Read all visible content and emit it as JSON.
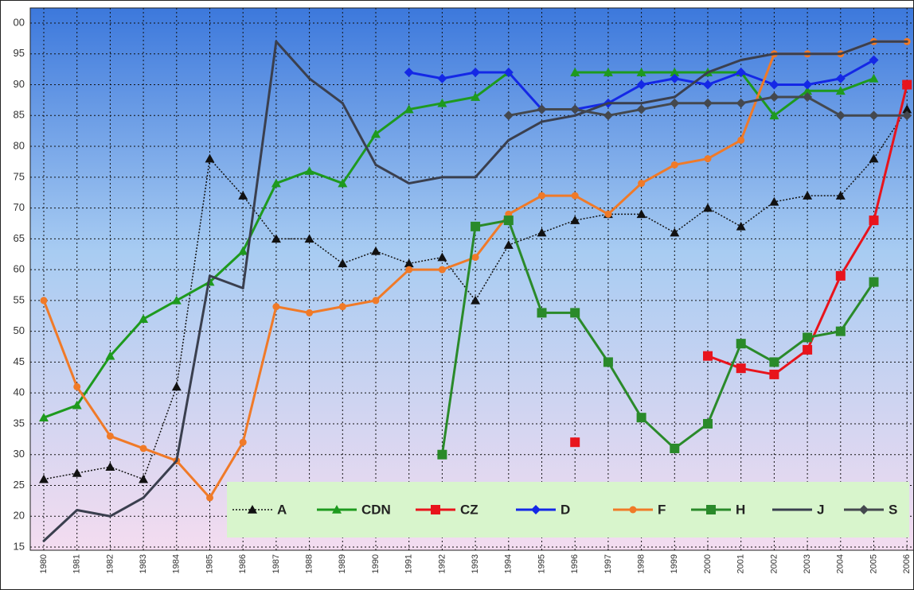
{
  "chart_data": {
    "type": "line",
    "categories": [
      "1980",
      "1981",
      "1982",
      "1983",
      "1984",
      "1985",
      "1986",
      "1987",
      "1988",
      "1989",
      "1990",
      "1991",
      "1992",
      "1993",
      "1994",
      "1995",
      "1996",
      "1997",
      "1998",
      "1999",
      "2000",
      "2001",
      "2002",
      "2003",
      "2004",
      "2005",
      "2006"
    ],
    "ylim": [
      15,
      100
    ],
    "yticks": [
      15,
      20,
      25,
      30,
      35,
      40,
      45,
      50,
      55,
      60,
      65,
      70,
      75,
      80,
      85,
      90,
      95,
      {
        "value": 100,
        "label": "00"
      }
    ],
    "grid": true,
    "legend": "bottom-right",
    "series": [
      {
        "name": "A",
        "color": "#111111",
        "marker": "triangle",
        "line_style": "dotted",
        "values": [
          26,
          27,
          28,
          26,
          41,
          78,
          72,
          65,
          65,
          61,
          63,
          61,
          62,
          55,
          64,
          66,
          68,
          69,
          69,
          66,
          70,
          67,
          71,
          72,
          72,
          78,
          86
        ]
      },
      {
        "name": "CDN",
        "color": "#1e9a1e",
        "marker": "triangle",
        "line_style": "solid",
        "values": [
          36,
          38,
          46,
          52,
          55,
          58,
          63,
          74,
          76,
          74,
          82,
          86,
          87,
          88,
          92,
          null,
          92,
          92,
          92,
          92,
          92,
          92,
          85,
          89,
          89,
          91,
          null
        ]
      },
      {
        "name": "CZ",
        "color": "#e8141c",
        "marker": "square",
        "line_style": "solid",
        "values": [
          null,
          null,
          null,
          null,
          null,
          null,
          null,
          null,
          null,
          null,
          null,
          null,
          null,
          null,
          null,
          null,
          32,
          null,
          null,
          null,
          46,
          44,
          43,
          47,
          59,
          68,
          90
        ]
      },
      {
        "name": "D",
        "color": "#1428e6",
        "marker": "diamond",
        "line_style": "solid",
        "values": [
          null,
          null,
          null,
          null,
          null,
          null,
          null,
          null,
          null,
          null,
          null,
          92,
          91,
          92,
          92,
          86,
          86,
          87,
          90,
          91,
          90,
          92,
          90,
          90,
          91,
          94,
          null
        ]
      },
      {
        "name": "F",
        "color": "#f07a28",
        "marker": "circle",
        "line_style": "solid",
        "values": [
          55,
          41,
          33,
          31,
          29,
          23,
          32,
          54,
          53,
          54,
          55,
          60,
          60,
          62,
          69,
          72,
          72,
          69,
          74,
          77,
          78,
          81,
          95,
          95,
          95,
          97,
          97
        ]
      },
      {
        "name": "H",
        "color": "#2a8a2a",
        "marker": "square",
        "line_style": "solid",
        "values": [
          null,
          null,
          null,
          null,
          null,
          null,
          null,
          null,
          null,
          null,
          null,
          null,
          30,
          67,
          68,
          53,
          53,
          45,
          36,
          31,
          35,
          48,
          45,
          49,
          50,
          58,
          null
        ]
      },
      {
        "name": "J",
        "color": "#3a3f4e",
        "marker": "none",
        "line_style": "solid",
        "values": [
          16,
          21,
          20,
          23,
          29,
          59,
          57,
          97,
          91,
          87,
          77,
          74,
          75,
          75,
          81,
          84,
          85,
          87,
          87,
          88,
          92,
          94,
          95,
          95,
          95,
          97,
          97
        ]
      },
      {
        "name": "S",
        "color": "#44484e",
        "marker": "diamond",
        "line_style": "solid",
        "values": [
          null,
          null,
          null,
          null,
          null,
          null,
          null,
          null,
          null,
          null,
          null,
          null,
          null,
          null,
          85,
          86,
          86,
          85,
          86,
          87,
          87,
          87,
          88,
          88,
          85,
          85,
          85
        ]
      }
    ]
  }
}
